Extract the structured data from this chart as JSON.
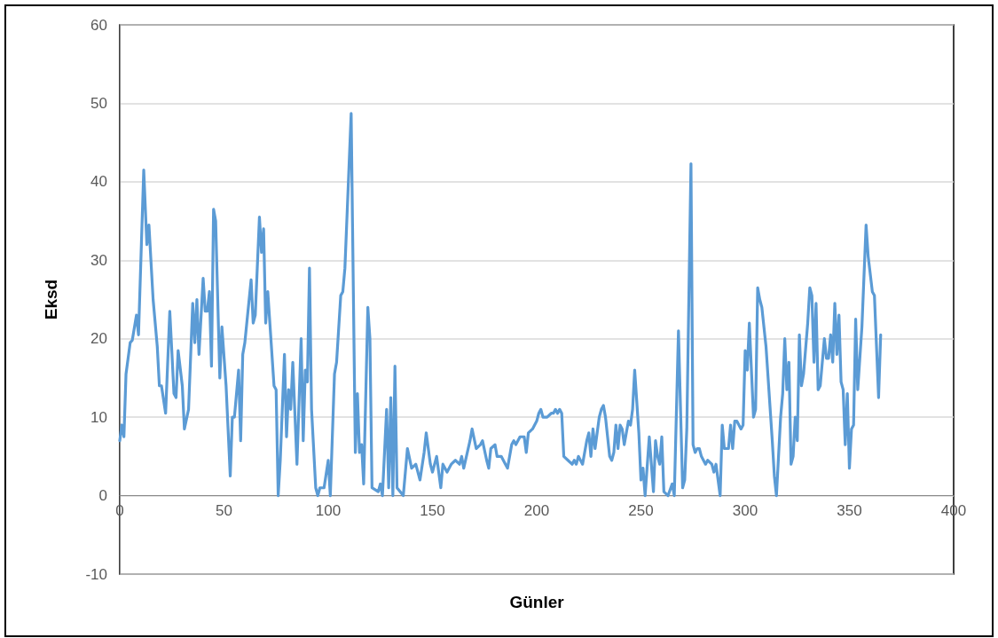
{
  "chart_data": {
    "type": "line",
    "xlabel": "Günler",
    "ylabel": "Eksd",
    "xlim": [
      0,
      400
    ],
    "xticks": [
      0,
      50,
      100,
      150,
      200,
      250,
      300,
      350,
      400
    ],
    "ylim": [
      -10,
      60
    ],
    "yticks": [
      -10,
      0,
      10,
      20,
      30,
      40,
      50,
      60
    ],
    "grid": "y",
    "marker": "none",
    "line_style": "solid",
    "x": [
      0,
      1,
      2,
      3,
      5,
      6,
      8,
      9,
      11.5,
      13,
      14,
      16,
      18,
      19,
      20,
      22,
      24,
      26,
      27,
      28,
      30,
      31,
      33,
      35,
      36,
      37,
      38,
      40,
      41,
      42,
      43,
      44,
      45,
      46,
      48,
      49,
      51,
      53,
      54,
      55,
      57,
      58,
      59,
      60,
      63,
      64,
      65,
      67,
      68,
      69,
      70,
      71,
      74,
      75,
      76,
      77,
      79,
      80,
      81,
      82,
      83,
      85,
      87,
      88,
      89,
      90,
      91,
      92,
      94,
      95,
      96,
      98,
      100,
      101,
      103,
      104,
      106,
      107,
      108,
      111,
      113,
      114,
      115,
      116,
      117,
      119,
      120,
      121,
      124,
      125,
      126,
      128,
      129,
      130,
      131,
      132,
      133,
      136,
      138,
      140,
      142,
      144,
      146,
      147,
      149,
      150,
      152,
      154,
      155,
      157,
      159,
      161,
      163,
      164,
      165,
      168,
      169,
      171,
      173,
      174,
      176,
      177,
      178,
      180,
      181,
      183,
      185,
      186,
      188,
      189,
      190,
      192,
      194,
      195,
      196,
      198,
      200,
      201,
      202,
      203,
      205,
      207,
      208,
      209,
      210,
      211,
      212,
      213,
      215,
      217,
      218,
      219,
      220,
      222,
      224,
      225,
      226,
      227,
      228,
      230,
      231,
      232,
      233,
      235,
      236,
      237,
      238,
      239,
      240,
      241,
      242,
      244,
      245,
      246,
      247,
      249,
      250,
      251,
      252,
      254,
      256,
      257,
      258,
      259,
      260,
      261,
      263,
      265,
      266,
      268,
      270,
      271,
      272,
      274,
      275,
      276,
      277,
      278,
      279,
      281,
      282,
      284,
      285,
      286,
      288,
      289,
      290,
      292,
      293,
      294,
      295,
      296,
      297,
      298,
      299,
      300,
      301,
      302,
      304,
      305,
      306,
      307,
      308,
      310,
      313,
      314,
      315,
      317,
      318,
      319,
      320,
      321,
      322,
      323,
      324,
      325,
      326,
      327,
      328,
      330,
      331,
      332,
      333,
      334,
      335,
      336,
      338,
      339,
      340,
      341,
      342,
      343,
      344,
      345,
      346,
      347,
      348,
      349,
      350,
      351,
      352,
      353,
      354,
      356,
      358,
      359,
      361,
      362,
      364,
      365
    ],
    "series": [
      {
        "color": "#5b9bd5",
        "values": [
          7,
          9,
          7.5,
          15.5,
          19.5,
          19.8,
          23,
          20.5,
          41.5,
          32,
          34.5,
          25,
          19,
          14,
          14,
          10.5,
          23.5,
          13,
          12.5,
          18.5,
          14,
          8.5,
          11,
          24.5,
          19.5,
          25,
          18,
          27.7,
          23.5,
          23.5,
          26,
          16.5,
          36.5,
          35,
          15,
          21.5,
          14,
          2.5,
          10,
          10,
          16,
          7,
          18,
          19.5,
          27.5,
          22,
          23,
          35.5,
          31,
          34,
          22,
          26,
          14,
          13.5,
          0,
          4.5,
          18,
          7.5,
          13.5,
          11,
          17,
          4,
          20,
          7,
          16,
          14.5,
          29,
          11,
          1,
          0,
          1,
          1,
          4.5,
          0,
          15.5,
          17,
          25.5,
          26,
          29,
          48.7,
          5.5,
          13,
          5.5,
          6.5,
          1.5,
          24,
          20,
          1,
          0.5,
          1.5,
          0,
          11,
          1,
          12.5,
          0,
          16.5,
          1,
          0,
          6,
          3.5,
          4,
          2,
          5.5,
          8,
          4,
          3,
          5,
          1,
          4,
          3,
          4,
          4.5,
          4,
          5,
          3.5,
          7,
          8.5,
          6,
          6.5,
          7,
          4.5,
          3.5,
          6,
          6.5,
          5,
          5,
          4,
          3.5,
          6.5,
          7,
          6.5,
          7.5,
          7.5,
          5.5,
          8,
          8.5,
          9.5,
          10.5,
          11,
          10,
          10,
          10.5,
          10.5,
          11,
          10.5,
          11,
          10.5,
          5,
          4.5,
          4,
          4.5,
          4,
          5,
          4,
          7,
          8,
          5,
          8.5,
          6,
          10,
          11,
          11.5,
          10,
          5,
          4.5,
          5.5,
          9,
          6,
          9,
          8.5,
          6.5,
          9.5,
          9,
          11,
          16,
          8,
          2,
          3.5,
          0,
          7.5,
          0.5,
          7,
          5,
          4,
          7.5,
          0.5,
          0,
          1.5,
          0,
          21,
          1,
          2,
          8.5,
          42.3,
          6.5,
          5.5,
          6,
          6,
          5,
          4,
          4.5,
          4,
          3,
          4,
          0,
          9,
          6,
          6,
          9,
          6,
          9.5,
          9.5,
          9,
          8.5,
          9,
          18.5,
          16,
          22,
          10,
          11,
          26.5,
          25,
          24,
          19,
          7,
          2.5,
          0,
          10,
          13,
          20,
          13.5,
          17,
          4,
          5,
          10,
          7,
          20.5,
          14,
          15.5,
          22,
          26.5,
          25.5,
          17,
          24.5,
          13.5,
          14,
          20,
          17.5,
          17.5,
          20.5,
          17,
          24.5,
          18,
          23,
          14.5,
          13.5,
          6.5,
          13,
          3.5,
          8.5,
          9,
          22.5,
          13.5,
          21.5,
          34.5,
          30.5,
          26,
          25.5,
          12.5,
          20.5
        ]
      }
    ]
  }
}
